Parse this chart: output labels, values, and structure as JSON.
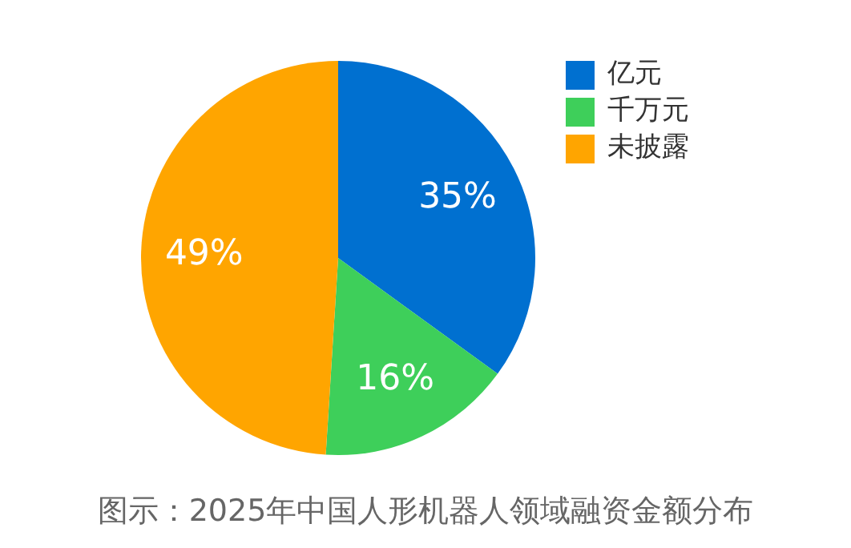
{
  "chart_data": {
    "type": "pie",
    "title": "图示：2025年中国人形机器人领域融资金额分布",
    "categories": [
      "亿元",
      "千万元",
      "未披露"
    ],
    "values": [
      35,
      16,
      49
    ],
    "colors": [
      "#0070d0",
      "#3ecf5a",
      "#ffa500"
    ],
    "value_labels": [
      "35%",
      "16%",
      "49%"
    ],
    "legend": "top right"
  }
}
